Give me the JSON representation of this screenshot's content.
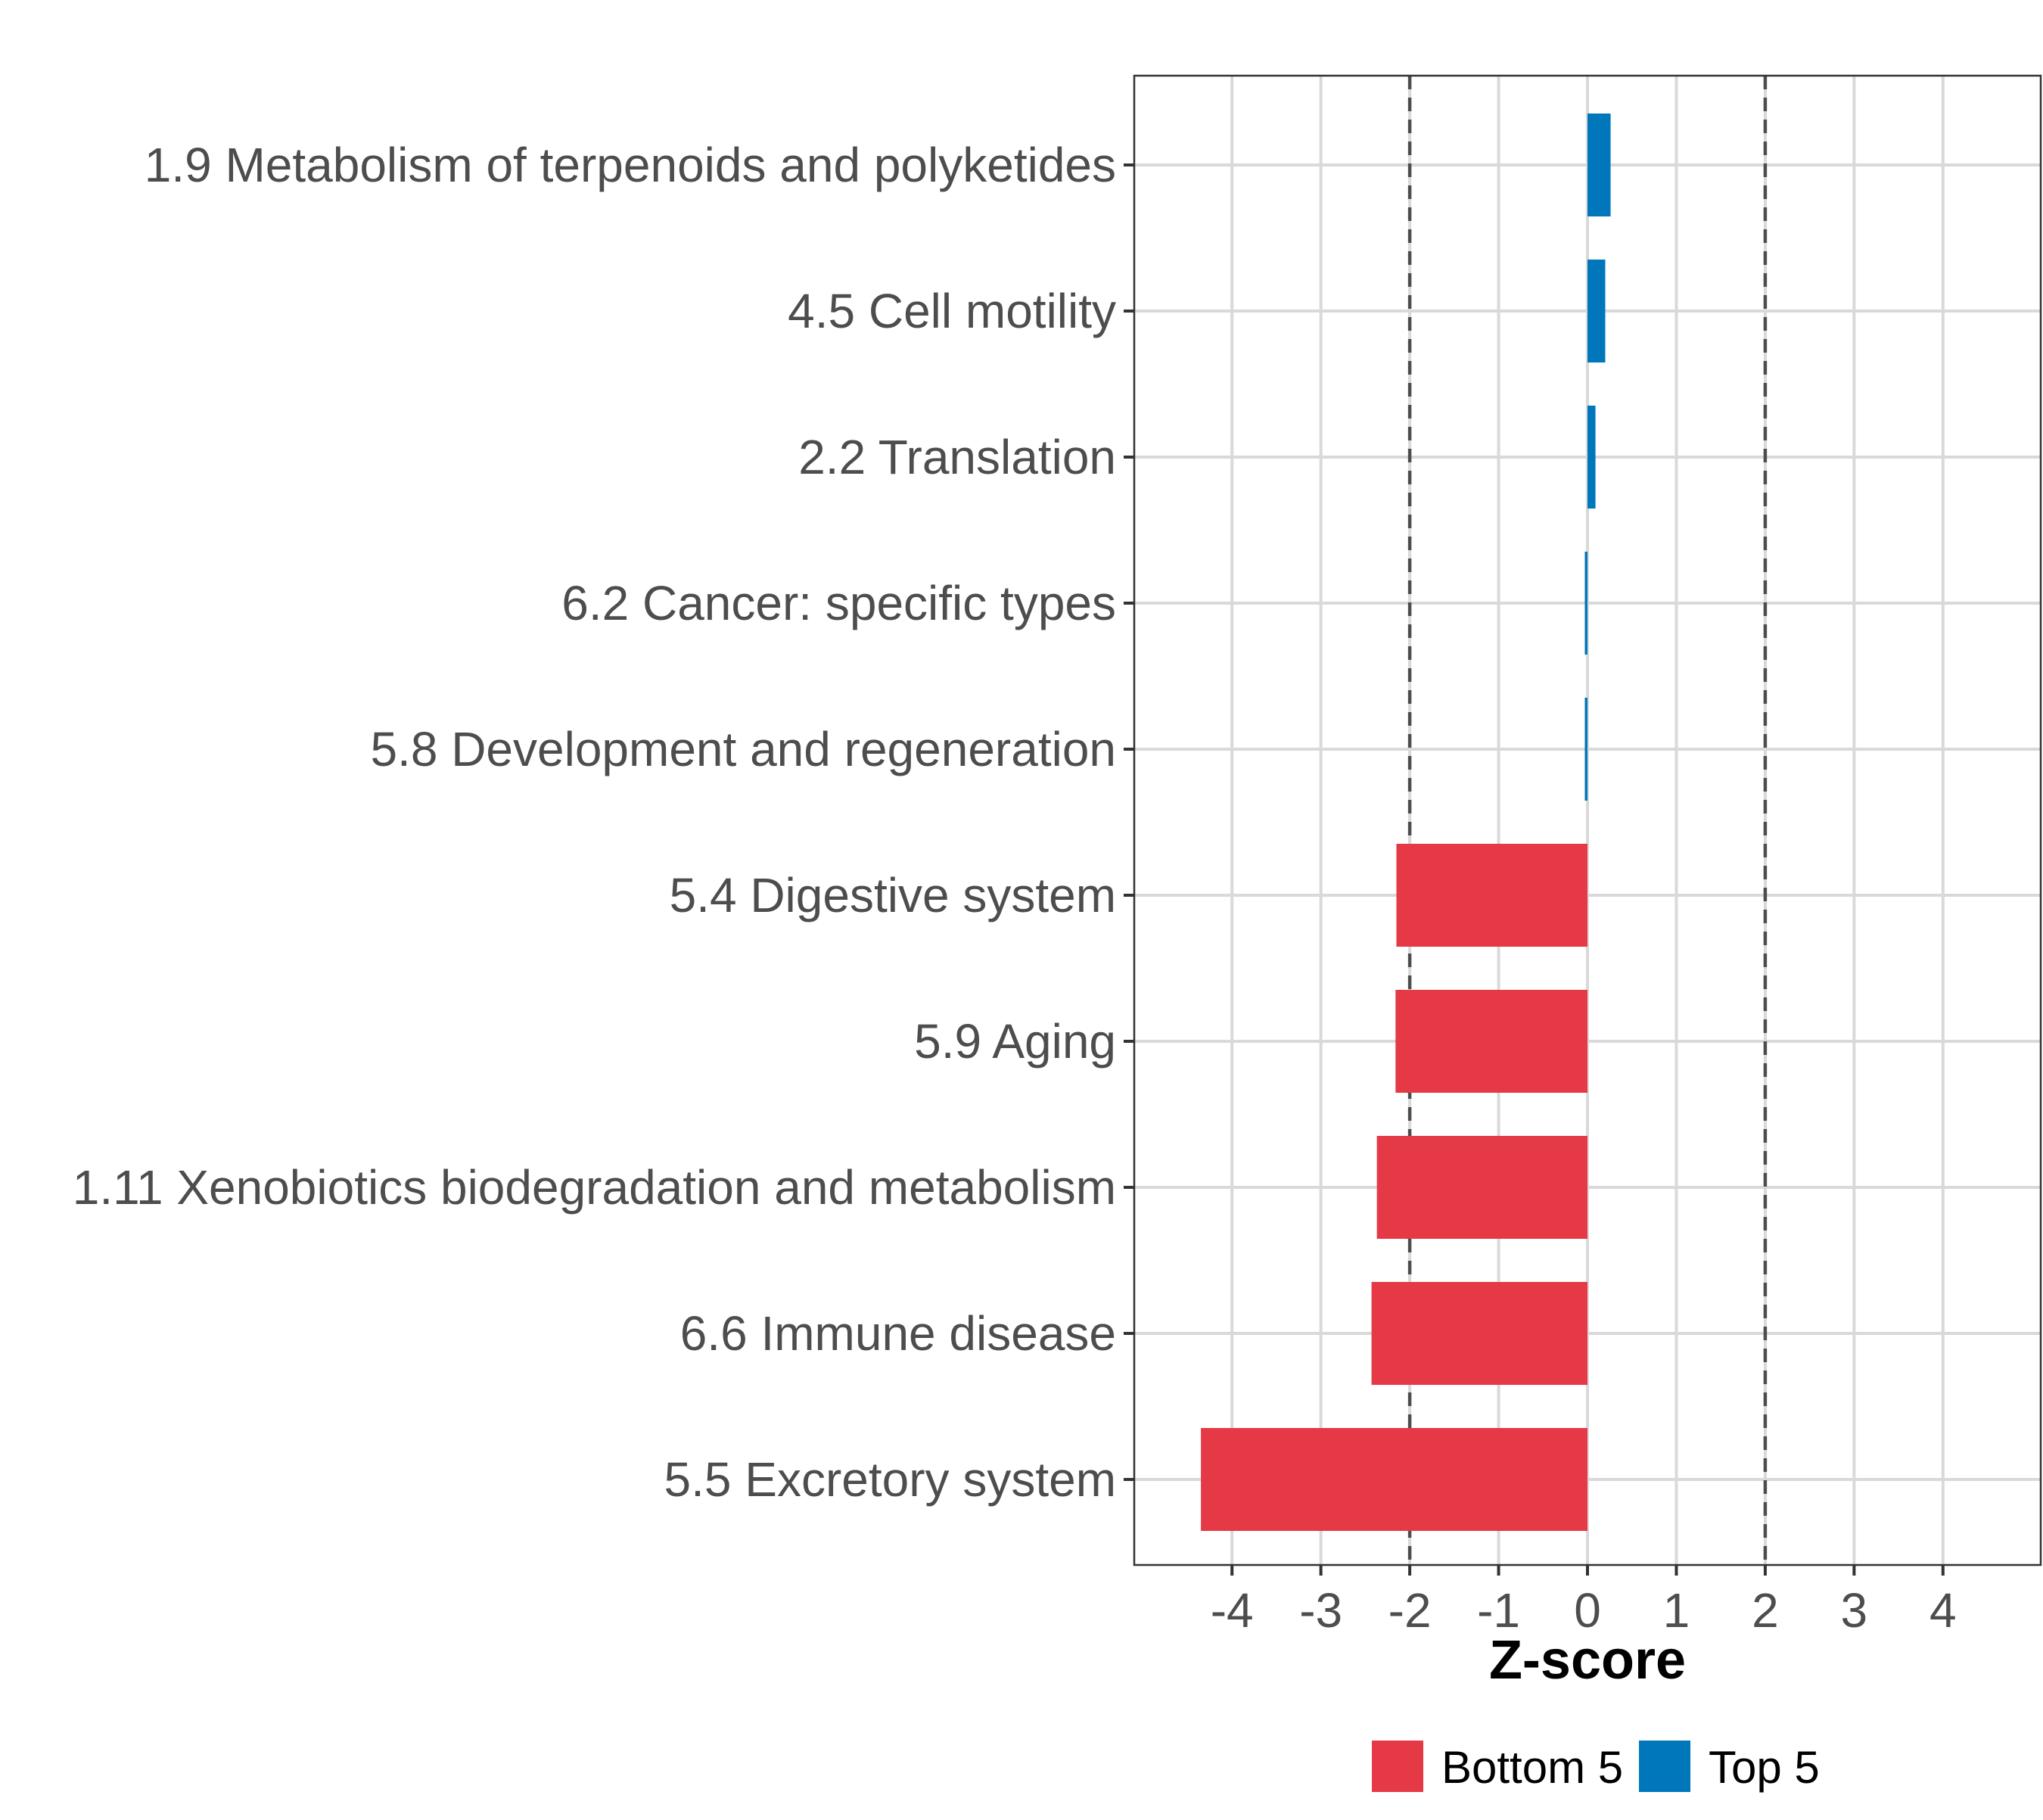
{
  "chart_data": {
    "type": "bar",
    "orientation": "horizontal",
    "title": "",
    "xlabel": "Z-score",
    "ylabel": "",
    "xlim": [
      -5.1,
      5.1
    ],
    "xticks": [
      -4,
      -3,
      -2,
      -1,
      0,
      1,
      2,
      3,
      4
    ],
    "xtick_labels": [
      "-4",
      "-3",
      "-2",
      "-1",
      "0",
      "1",
      "2",
      "3",
      "4"
    ],
    "reference_lines": [
      -2,
      2
    ],
    "grid": true,
    "categories": [
      "1.9 Metabolism of terpenoids and polyketides",
      "4.5 Cell motility",
      "2.2 Translation",
      "6.2 Cancer: specific types",
      "5.8 Development and regeneration",
      "5.4 Digestive system",
      "5.9 Aging",
      "1.11 Xenobiotics biodegradation and metabolism",
      "6.6 Immune disease",
      "5.5 Excretory system"
    ],
    "values": [
      0.26,
      0.2,
      0.09,
      -0.03,
      -0.03,
      -2.15,
      -2.16,
      -2.37,
      -2.43,
      -4.35
    ],
    "groups": [
      "Top 5",
      "Top 5",
      "Top 5",
      "Top 5",
      "Top 5",
      "Bottom 5",
      "Bottom 5",
      "Bottom 5",
      "Bottom 5",
      "Bottom 5"
    ],
    "colors": {
      "Bottom 5": "#E63946",
      "Top 5": "#0077BB"
    },
    "legend": {
      "position": "bottom",
      "items": [
        {
          "label": "Bottom 5",
          "color": "#E63946"
        },
        {
          "label": "Top 5",
          "color": "#0077BB"
        }
      ]
    }
  }
}
